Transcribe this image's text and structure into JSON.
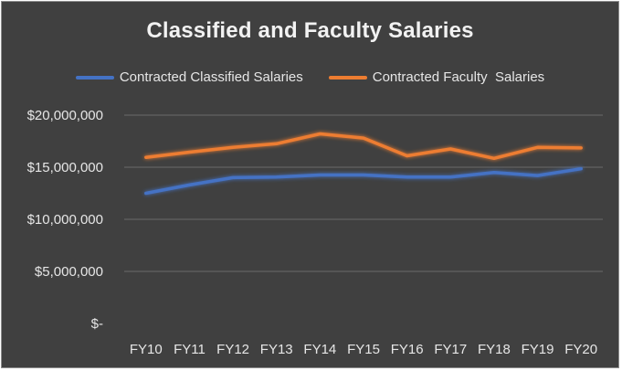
{
  "chart_data": {
    "type": "line",
    "title": "Classified and Faculty Salaries",
    "categories": [
      "FY10",
      "FY11",
      "FY12",
      "FY13",
      "FY14",
      "FY15",
      "FY16",
      "FY17",
      "FY18",
      "FY19",
      "FY20"
    ],
    "series": [
      {
        "name": "Contracted Classified Salaries",
        "color": "#4472c4",
        "values": [
          12500000,
          13300000,
          14000000,
          14050000,
          14250000,
          14250000,
          14050000,
          14050000,
          14500000,
          14200000,
          14850000
        ]
      },
      {
        "name": "Contracted Faculty  Salaries",
        "color": "#ed7d31",
        "values": [
          15950000,
          16450000,
          16900000,
          17250000,
          18200000,
          17800000,
          16100000,
          16750000,
          15850000,
          16900000,
          16850000
        ]
      }
    ],
    "y_ticks": [
      0,
      5000000,
      10000000,
      15000000,
      20000000
    ],
    "y_tick_labels": [
      "$-",
      "$5,000,000",
      "$10,000,000",
      "$15,000,000",
      "$20,000,000"
    ],
    "ylim": [
      0,
      20000000
    ],
    "xlabel": "",
    "ylabel": "",
    "grid": true,
    "legend_position": "top"
  },
  "colors": {
    "background": "#404040",
    "gridline": "#6a6a6a",
    "text": "#e6e6e6"
  }
}
